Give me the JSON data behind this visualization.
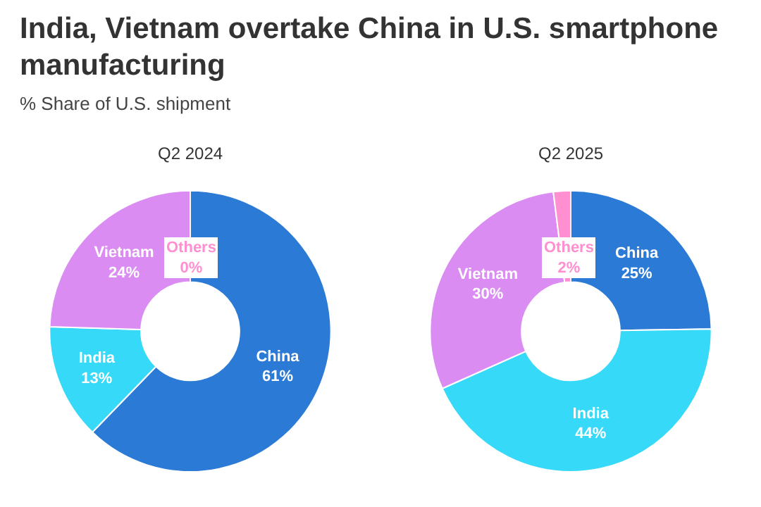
{
  "chart_data": [
    {
      "type": "donut",
      "title": "India, Vietnam overtake China in U.S. smartphone manufacturing",
      "subtitle": "% Share of U.S. shipment",
      "annotations": [
        "Q2 2024"
      ],
      "categories": [
        "China",
        "India",
        "Vietnam",
        "Others"
      ],
      "values": [
        61,
        13,
        24,
        0
      ],
      "colors": [
        "#2b7bd6",
        "#36d9f7",
        "#da8cf2",
        "#ff8fd0"
      ],
      "value_labels": [
        "61%",
        "13%",
        "24%",
        "0%"
      ],
      "legend": false
    },
    {
      "type": "donut",
      "title": "Q2 2025",
      "categories": [
        "China",
        "India",
        "Vietnam",
        "Others"
      ],
      "values": [
        25,
        44,
        30,
        2
      ],
      "colors": [
        "#2b7bd6",
        "#36d9f7",
        "#da8cf2",
        "#ff8fd0"
      ],
      "value_labels": [
        "25%",
        "44%",
        "30%",
        "2%"
      ],
      "legend": false
    }
  ]
}
